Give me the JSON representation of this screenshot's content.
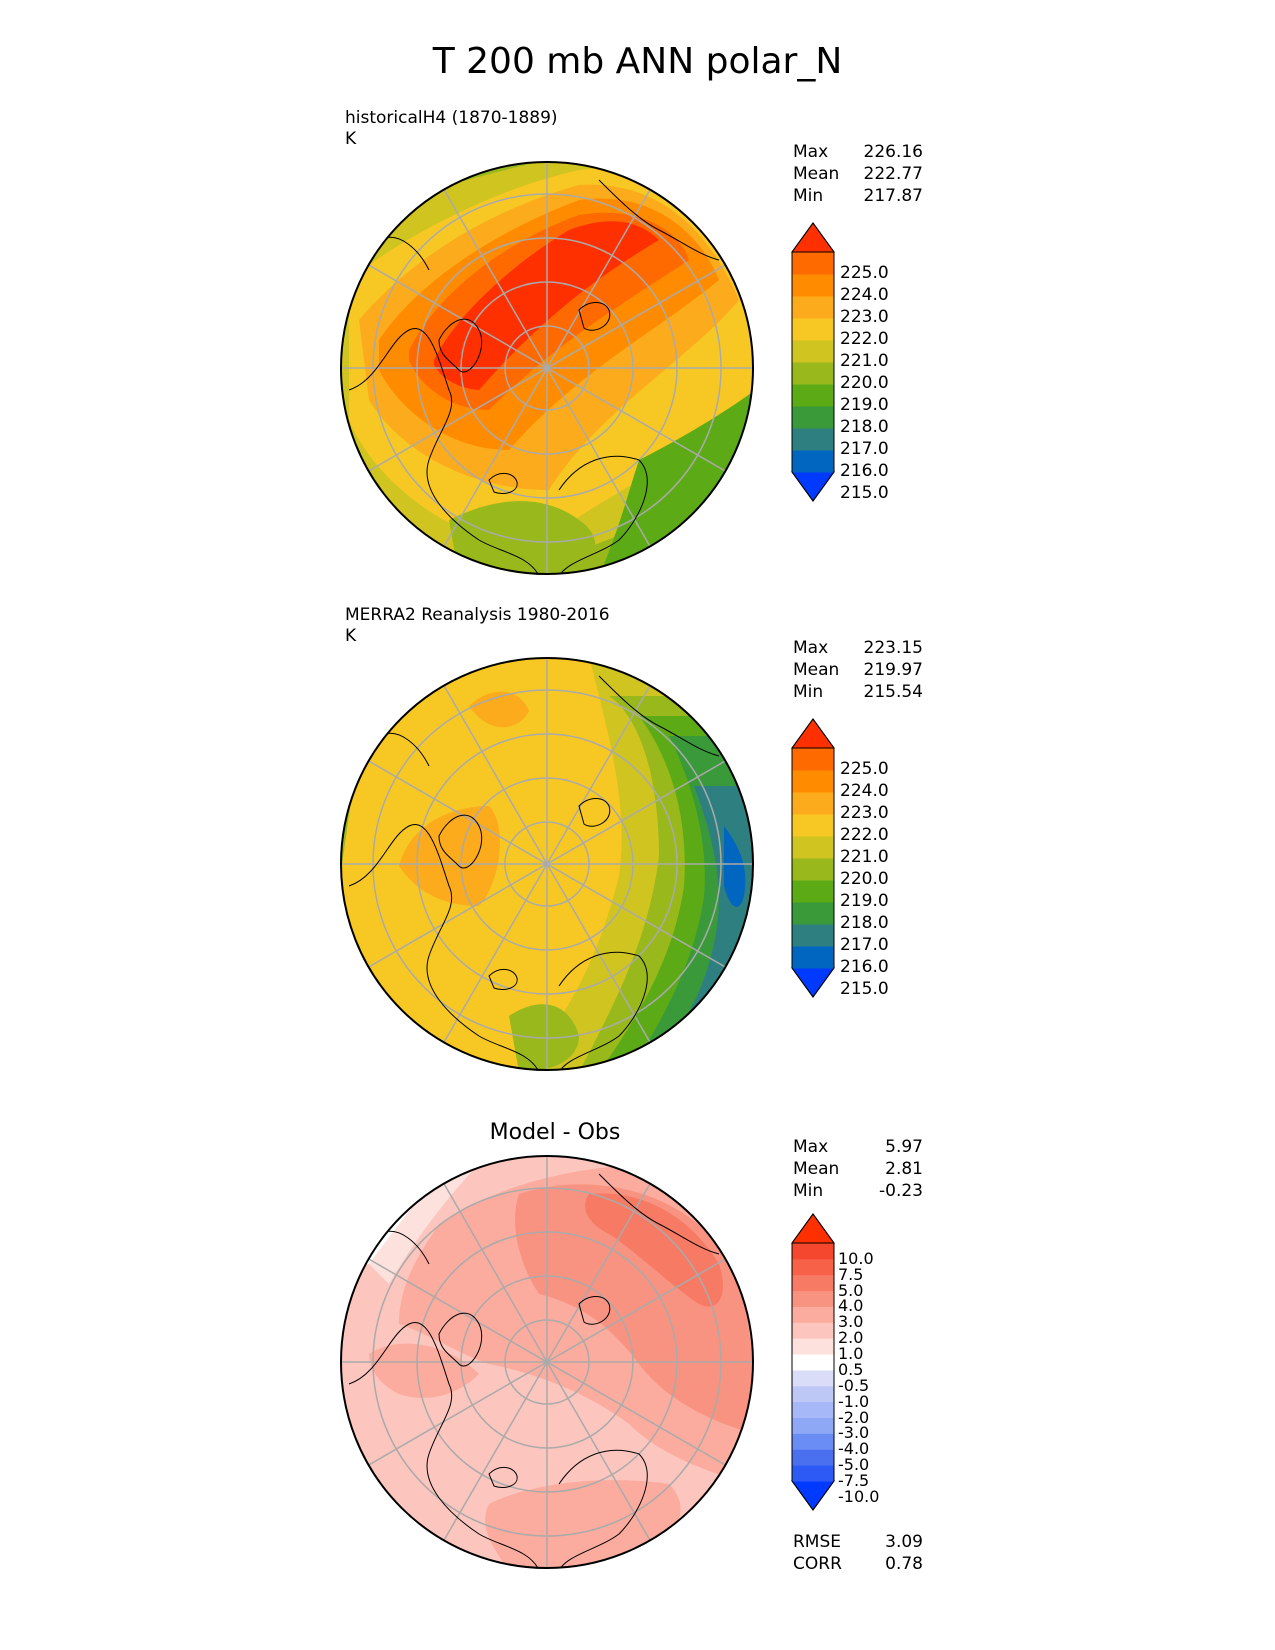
{
  "title": "T 200 mb ANN polar_N",
  "colors": {
    "abs_scale": [
      "#0039ff",
      "#0066c0",
      "#2e8080",
      "#3a9a3a",
      "#5cab16",
      "#98b81c",
      "#cfc420",
      "#f7c824",
      "#fcab1c",
      "#ff8c00",
      "#ff6a00",
      "#ff3000"
    ],
    "diff_scale": [
      "#0039ff",
      "#2d5af5",
      "#4a70f0",
      "#6a8cf5",
      "#8ea8f5",
      "#a6b8f7",
      "#bdc8f7",
      "#d9ddf7",
      "#ffffff",
      "#fde1dd",
      "#fcc5bd",
      "#fbac9e",
      "#f99381",
      "#f77a64",
      "#f66148",
      "#f4472d",
      "#ff3000"
    ],
    "map_outline": "#000000",
    "grid": "#aaaaaa"
  },
  "panels": [
    {
      "id": "test",
      "title_line1": "historicalH4 (1870-1889)",
      "title_line2": "K",
      "stats": {
        "Max": "226.16",
        "Mean": "222.77",
        "Min": "217.87"
      },
      "labels": [
        "225.0",
        "224.0",
        "223.0",
        "222.0",
        "221.0",
        "220.0",
        "219.0",
        "218.0",
        "217.0",
        "216.0",
        "215.0"
      ]
    },
    {
      "id": "ref",
      "title_line1": "MERRA2 Reanalysis 1980-2016",
      "title_line2": "K",
      "stats": {
        "Max": "223.15",
        "Mean": "219.97",
        "Min": "215.54"
      },
      "labels": [
        "225.0",
        "224.0",
        "223.0",
        "222.0",
        "221.0",
        "220.0",
        "219.0",
        "218.0",
        "217.0",
        "216.0",
        "215.0"
      ]
    },
    {
      "id": "diff",
      "title": "Model - Obs",
      "stats": {
        "Max": "5.97",
        "Mean": "2.81",
        "Min": "-0.23"
      },
      "labels": [
        "10.0",
        "7.5",
        "5.0",
        "4.0",
        "3.0",
        "2.0",
        "1.0",
        "0.5",
        "-0.5",
        "-1.0",
        "-2.0",
        "-3.0",
        "-4.0",
        "-5.0",
        "-7.5",
        "-10.0"
      ],
      "metrics": {
        "RMSE": "3.09",
        "CORR": "0.78"
      }
    }
  ]
}
